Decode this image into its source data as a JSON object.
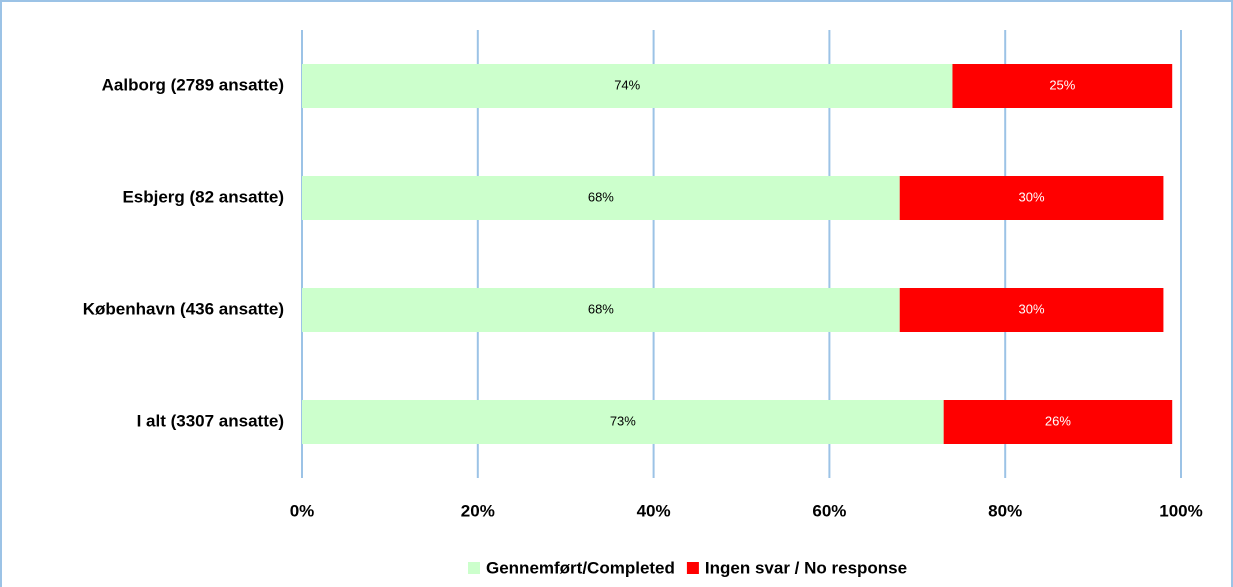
{
  "chart_data": {
    "type": "stacked-bar-horizontal",
    "categories": [
      "Aalborg (2789 ansatte)",
      "Esbjerg (82 ansatte)",
      "København (436 ansatte)",
      "I alt (3307 ansatte)"
    ],
    "series": [
      {
        "name": "Gennemført/Completed",
        "color": "#ccffcc",
        "values": [
          74,
          68,
          68,
          73
        ],
        "value_labels": [
          "74%",
          "68%",
          "68%",
          "73%"
        ]
      },
      {
        "name": "Ingen svar / No response",
        "color": "#ff0000",
        "values": [
          25,
          30,
          30,
          26
        ],
        "value_labels": [
          "25%",
          "30%",
          "30%",
          "26%"
        ]
      }
    ],
    "xlim": [
      0,
      100
    ],
    "xticks": [
      {
        "value": 0,
        "label": "0%"
      },
      {
        "value": 20,
        "label": "20%"
      },
      {
        "value": 40,
        "label": "40%"
      },
      {
        "value": 60,
        "label": "60%"
      },
      {
        "value": 80,
        "label": "80%"
      },
      {
        "value": 100,
        "label": "100%"
      }
    ],
    "grid": true,
    "legend": "bottom"
  }
}
